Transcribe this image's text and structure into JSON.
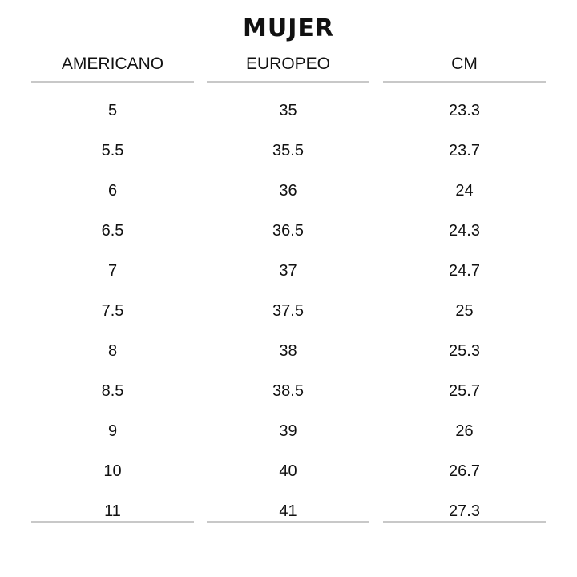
{
  "title": "MUJER",
  "columns": [
    {
      "header": "AMERICANO",
      "values": [
        "5",
        "5.5",
        "6",
        "6.5",
        "7",
        "7.5",
        "8",
        "8.5",
        "9",
        "10",
        "11"
      ]
    },
    {
      "header": "EUROPEO",
      "values": [
        "35",
        "35.5",
        "36",
        "36.5",
        "37",
        "37.5",
        "38",
        "38.5",
        "39",
        "40",
        "41"
      ]
    },
    {
      "header": "CM",
      "values": [
        "23.3",
        "23.7",
        "24",
        "24.3",
        "24.7",
        "25",
        "25.3",
        "25.7",
        "26",
        "26.7",
        "27.3"
      ]
    }
  ]
}
